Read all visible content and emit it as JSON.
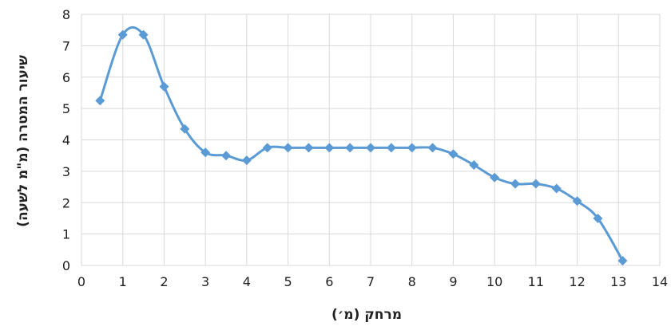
{
  "chart_data": {
    "type": "line",
    "title": "",
    "xlabel": "מרחק (מ׳)",
    "ylabel": "שיעור המטרה (מ\"מ לשעה)",
    "xlim": [
      0,
      14
    ],
    "ylim": [
      0,
      8
    ],
    "xticks": [
      0,
      1,
      2,
      3,
      4,
      5,
      6,
      7,
      8,
      9,
      10,
      11,
      12,
      13,
      14
    ],
    "yticks": [
      0,
      1,
      2,
      3,
      4,
      5,
      6,
      7,
      8
    ],
    "grid": true,
    "legend": "none",
    "smooth": true,
    "marker": "diamond",
    "color": "#5B9BD5",
    "grid_color": "#d9d9d9",
    "series": [
      {
        "x": [
          0.45,
          1.0,
          1.5,
          2.0,
          2.5,
          3.0,
          3.5,
          4.0,
          4.5,
          5.0,
          5.5,
          6.0,
          6.5,
          7.0,
          7.5,
          8.0,
          8.5,
          9.0,
          9.5,
          10.0,
          10.5,
          11.0,
          11.5,
          12.0,
          12.5,
          13.1
        ],
        "y": [
          5.25,
          7.35,
          7.35,
          5.7,
          4.35,
          3.6,
          3.5,
          3.35,
          3.75,
          3.75,
          3.75,
          3.75,
          3.75,
          3.75,
          3.75,
          3.75,
          3.75,
          3.55,
          3.2,
          2.8,
          2.6,
          2.6,
          2.45,
          2.05,
          1.5,
          0.15
        ]
      }
    ]
  }
}
